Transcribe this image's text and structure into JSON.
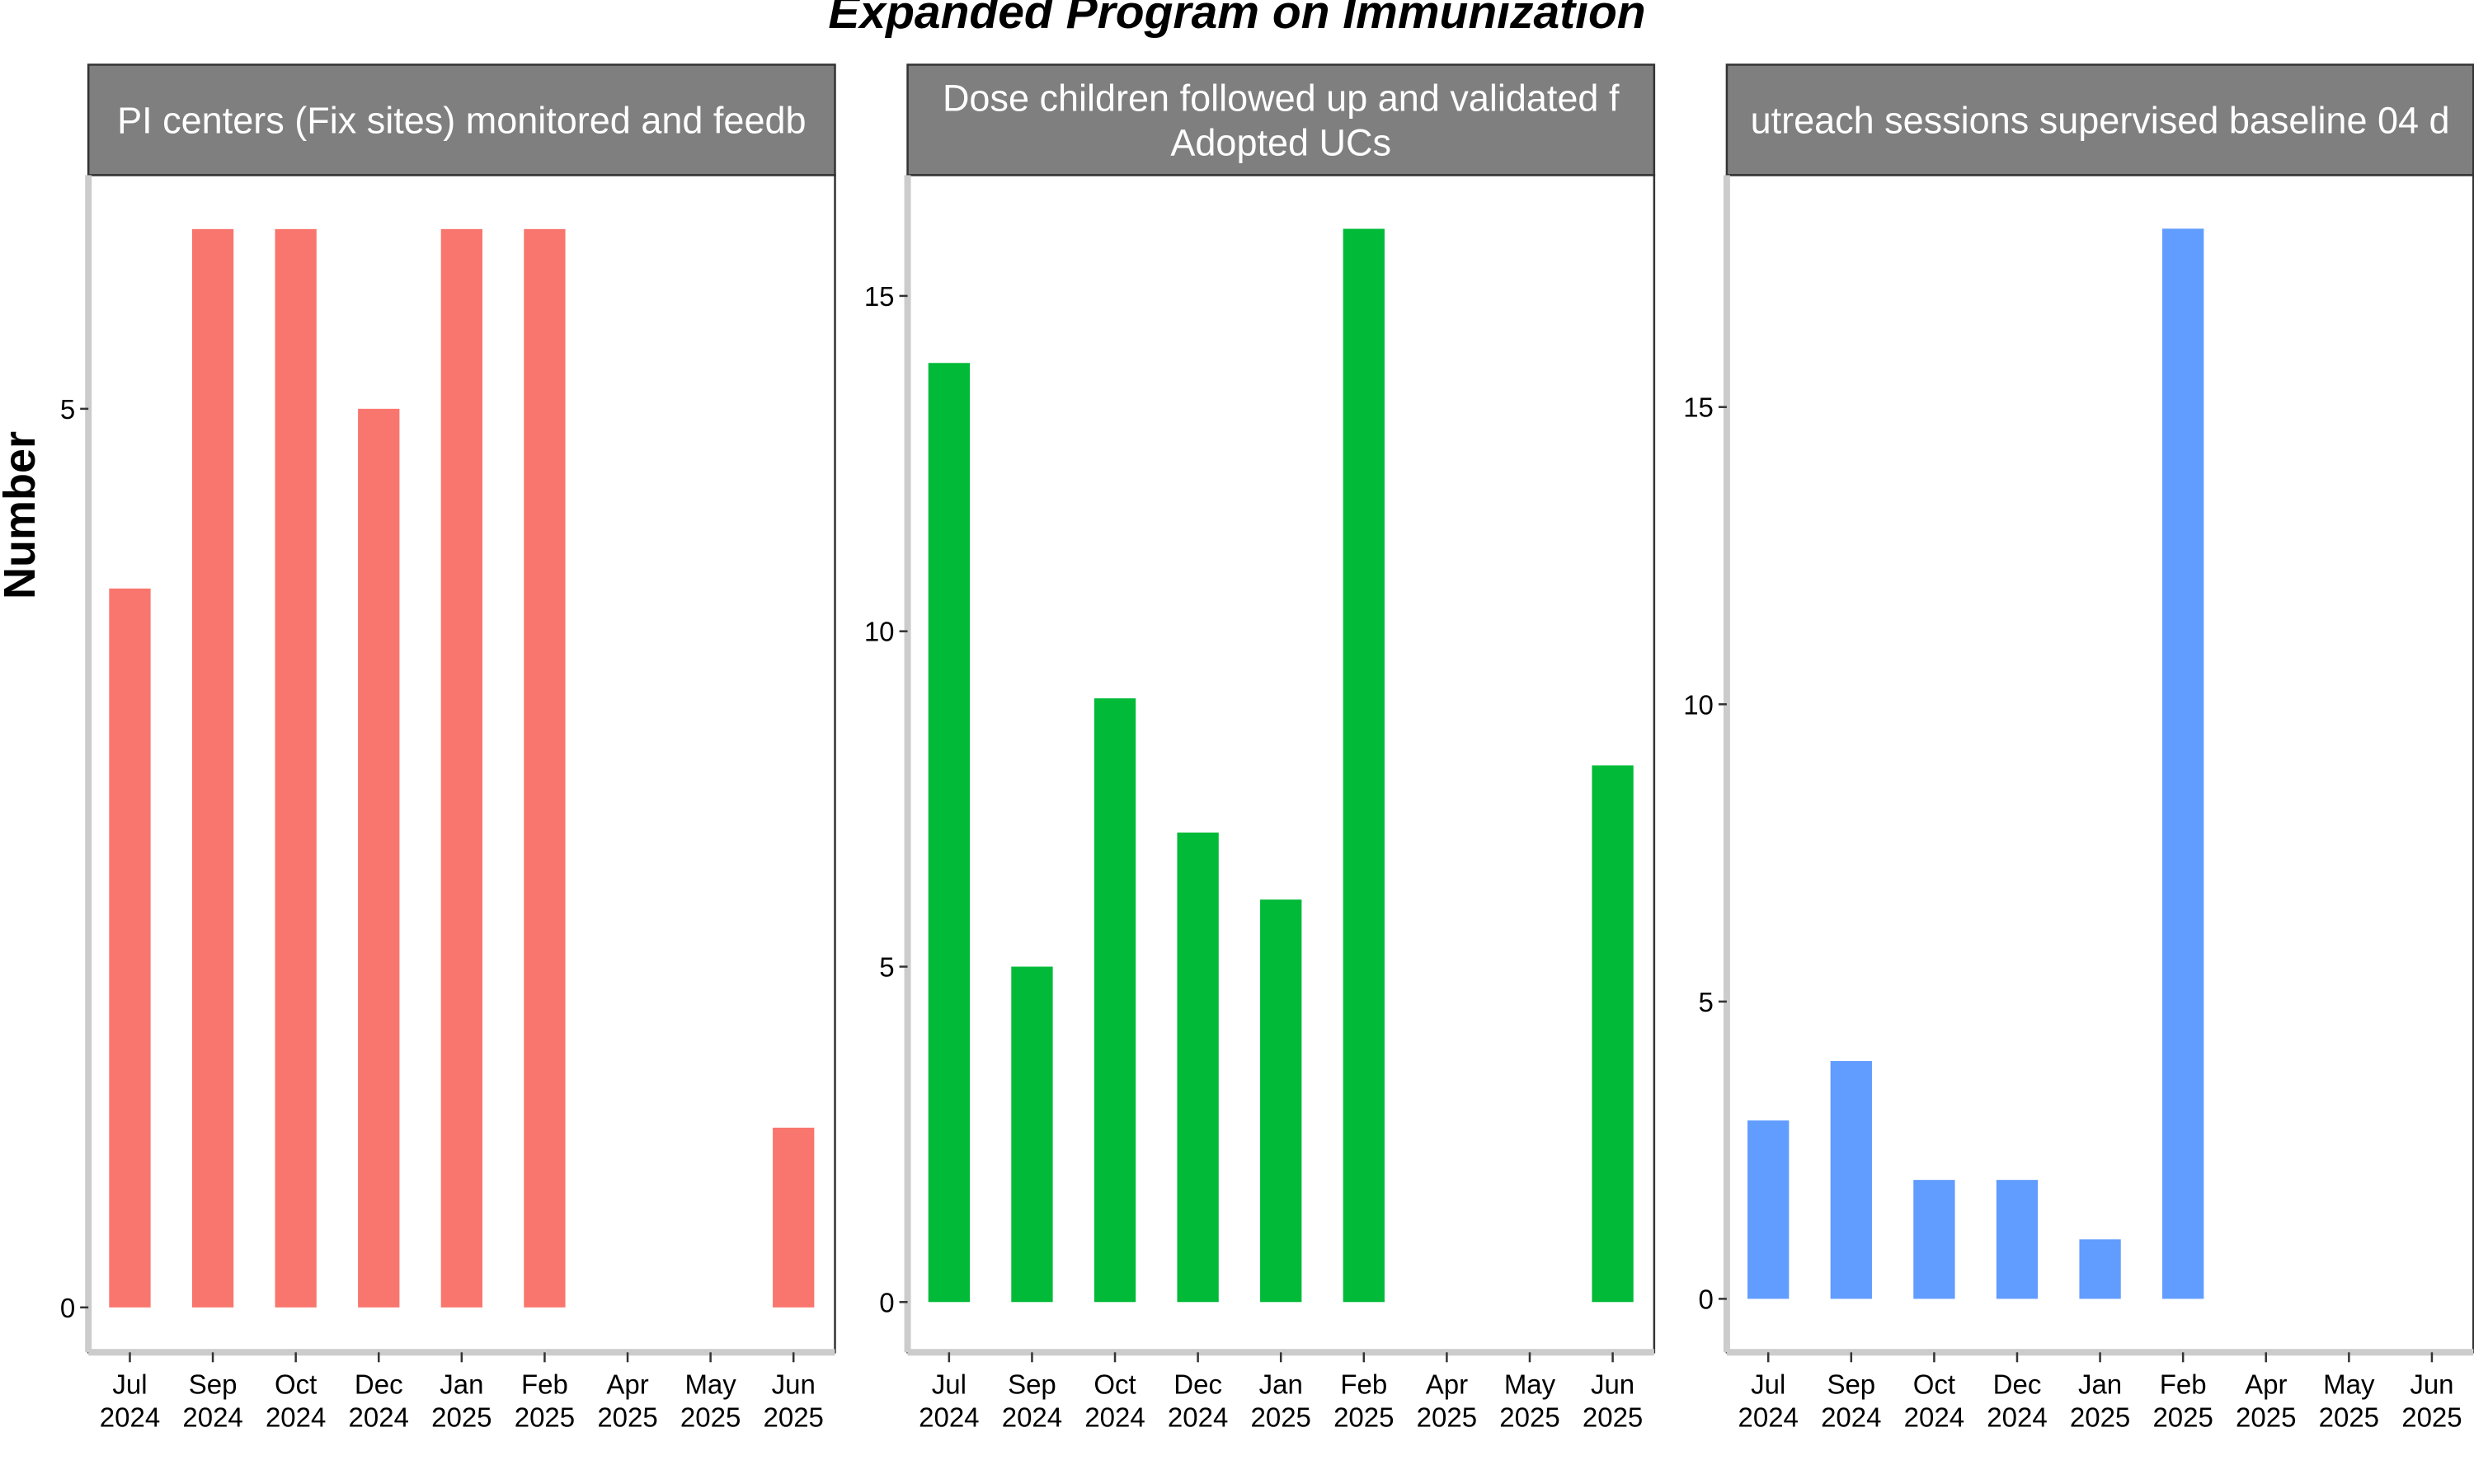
{
  "title": "Expanded Program on Immunization",
  "ylabel": "Number",
  "categories": [
    [
      "Jul",
      "2024"
    ],
    [
      "Sep",
      "2024"
    ],
    [
      "Oct",
      "2024"
    ],
    [
      "Dec",
      "2024"
    ],
    [
      "Jan",
      "2025"
    ],
    [
      "Feb",
      "2025"
    ],
    [
      "Apr",
      "2025"
    ],
    [
      "May",
      "2025"
    ],
    [
      "Jun",
      "2025"
    ]
  ],
  "chart_data": [
    {
      "type": "bar",
      "title": "PI centers (Fix sites) monitored and feedb",
      "categories": [
        "Jul 2024",
        "Sep 2024",
        "Oct 2024",
        "Dec 2024",
        "Jan 2025",
        "Feb 2025",
        "Apr 2025",
        "May 2025",
        "Jun 2025"
      ],
      "values": [
        4,
        6,
        6,
        5,
        6,
        6,
        null,
        null,
        1
      ],
      "ylim": [
        -0.25,
        6.3
      ],
      "yticks": [
        0,
        5
      ],
      "color": "#F8766D"
    },
    {
      "type": "bar",
      "title": "Dose children followed up and validated f\nAdopted UCs",
      "categories": [
        "Jul 2024",
        "Sep 2024",
        "Oct 2024",
        "Dec 2024",
        "Jan 2025",
        "Feb 2025",
        "Apr 2025",
        "May 2025",
        "Jun 2025"
      ],
      "values": [
        14,
        5,
        9,
        7,
        6,
        16,
        null,
        null,
        8
      ],
      "ylim": [
        -0.75,
        16.8
      ],
      "yticks": [
        0,
        5,
        10,
        15
      ],
      "color": "#00BA38"
    },
    {
      "type": "bar",
      "title": "utreach sessions supervised baseline 04 d",
      "categories": [
        "Jul 2024",
        "Sep 2024",
        "Oct 2024",
        "Dec 2024",
        "Jan 2025",
        "Feb 2025",
        "Apr 2025",
        "May 2025",
        "Jun 2025"
      ],
      "values": [
        3,
        4,
        2,
        2,
        1,
        18,
        null,
        null,
        null
      ],
      "ylim": [
        -0.9,
        18.9
      ],
      "yticks": [
        0,
        5,
        10,
        15
      ],
      "color": "#619CFF"
    }
  ]
}
